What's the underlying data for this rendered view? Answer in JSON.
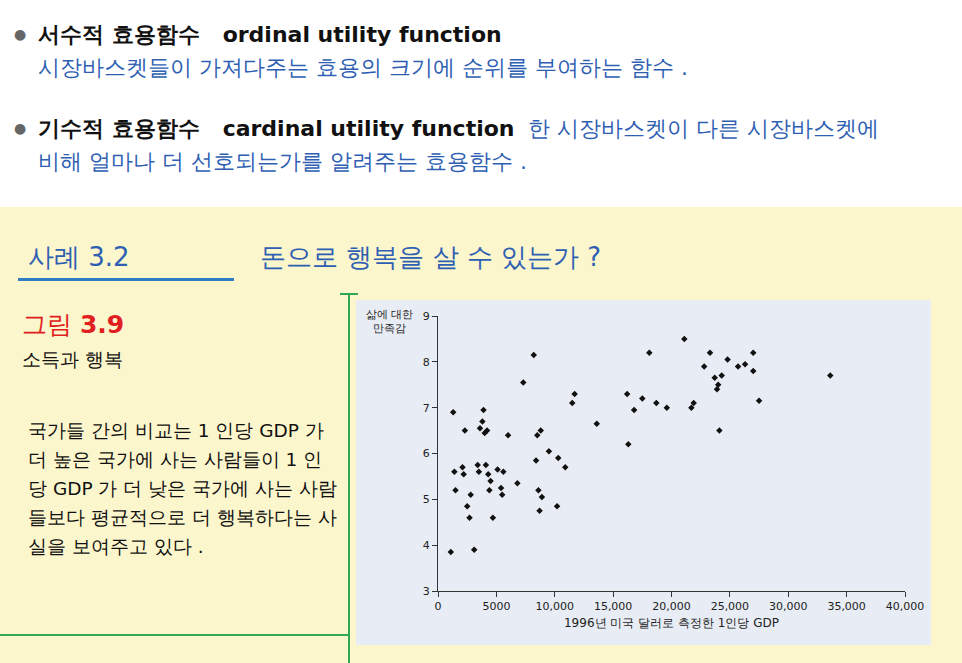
{
  "slide": {
    "bullets": [
      {
        "term": "서수적 효용함수",
        "term_en": "ordinal utility function",
        "definition": "시장바스켓들이 가져다주는 효용의 크기에 순위를 부여하는 함수 ."
      },
      {
        "term": "기수적 효용함수",
        "term_en": "cardinal utility function",
        "definition": "한 시장바스켓이 다른 시장바스켓에 비해 얼마나 더 선호되는가를 알려주는 효용함수 ."
      }
    ],
    "case": {
      "label": "사례 3.2",
      "title": "돈으로 행복을 살 수 있는가 ?"
    },
    "figure": {
      "label": "그림 3.9",
      "caption": "소득과 행복",
      "description": "국가들 간의 비교는 1 인당 GDP 가 더 높은 국가에 사는 사람들이 1 인당 GDP 가 더 낮은 국가에 사는 사람들보다 평균적으로 더 행복하다는 사실을 보여주고 있다 ."
    }
  },
  "chart_data": {
    "type": "scatter",
    "xlabel": "1996년 미국 달러로 측정한 1인당 GDP",
    "ylabel": "삶에 대한 만족감",
    "x": [
      1100,
      1300,
      1400,
      1500,
      2100,
      2200,
      2300,
      2500,
      2700,
      2800,
      3100,
      3400,
      3500,
      3600,
      3800,
      3900,
      4000,
      4100,
      4200,
      4300,
      4400,
      4500,
      4700,
      5100,
      5400,
      5500,
      5600,
      6000,
      6800,
      7300,
      8200,
      8400,
      8500,
      8600,
      8700,
      8800,
      8900,
      9500,
      10200,
      10300,
      10900,
      11500,
      11700,
      13600,
      16200,
      16300,
      16800,
      17500,
      18100,
      18700,
      19600,
      21100,
      21700,
      21900,
      22800,
      23300,
      23700,
      23900,
      24000,
      24100,
      24300,
      24800,
      25700,
      26300,
      27000,
      27000,
      27500,
      33600
    ],
    "values": [
      3.85,
      6.9,
      5.6,
      5.2,
      5.7,
      5.55,
      6.5,
      4.85,
      4.6,
      5.1,
      3.9,
      5.75,
      5.6,
      6.55,
      6.7,
      6.95,
      6.45,
      5.75,
      6.5,
      5.55,
      5.2,
      5.4,
      4.6,
      5.65,
      5.25,
      5.1,
      5.6,
      6.4,
      5.35,
      7.55,
      8.15,
      5.85,
      6.4,
      5.2,
      4.75,
      6.5,
      5.05,
      6.05,
      4.85,
      5.9,
      5.7,
      7.1,
      7.3,
      6.65,
      7.3,
      6.2,
      6.95,
      7.2,
      8.2,
      7.1,
      7.0,
      8.5,
      7.0,
      7.1,
      7.9,
      8.2,
      7.65,
      7.4,
      7.5,
      6.5,
      7.7,
      8.05,
      7.9,
      7.95,
      8.2,
      7.8,
      7.15,
      7.7
    ],
    "xlim": [
      0,
      40000
    ],
    "ylim": [
      3,
      9
    ],
    "xticks": [
      0,
      5000,
      {
        "value": 10000,
        "label": "10,000"
      },
      {
        "value": 15000,
        "label": "15,000"
      },
      {
        "value": 20000,
        "label": "20,000"
      },
      {
        "value": 25000,
        "label": "25,000"
      },
      {
        "value": 30000,
        "label": "30,000"
      },
      {
        "value": 35000,
        "label": "35,000"
      },
      {
        "value": 40000,
        "label": "40,000"
      }
    ],
    "yticks": [
      3,
      4,
      5,
      6,
      7,
      8,
      9
    ],
    "color": "#111111",
    "marker": "diamond",
    "grid": false
  }
}
